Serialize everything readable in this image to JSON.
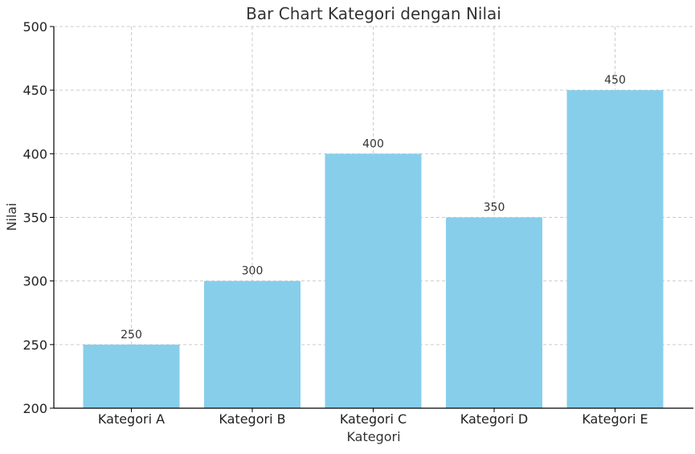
{
  "chart_data": {
    "type": "bar",
    "title": "Bar Chart Kategori dengan Nilai",
    "xlabel": "Kategori",
    "ylabel": "Nilai",
    "categories": [
      "Kategori A",
      "Kategori B",
      "Kategori C",
      "Kategori D",
      "Kategori E"
    ],
    "values": [
      250,
      300,
      400,
      350,
      450
    ],
    "data_labels": [
      "250",
      "300",
      "400",
      "350",
      "450"
    ],
    "ylim": [
      200,
      500
    ],
    "yticks": [
      200,
      250,
      300,
      350,
      400,
      450,
      500
    ],
    "ytick_labels": [
      "200",
      "250",
      "300",
      "350",
      "400",
      "450",
      "500"
    ],
    "grid": true,
    "bar_color": "#87CEEB"
  }
}
